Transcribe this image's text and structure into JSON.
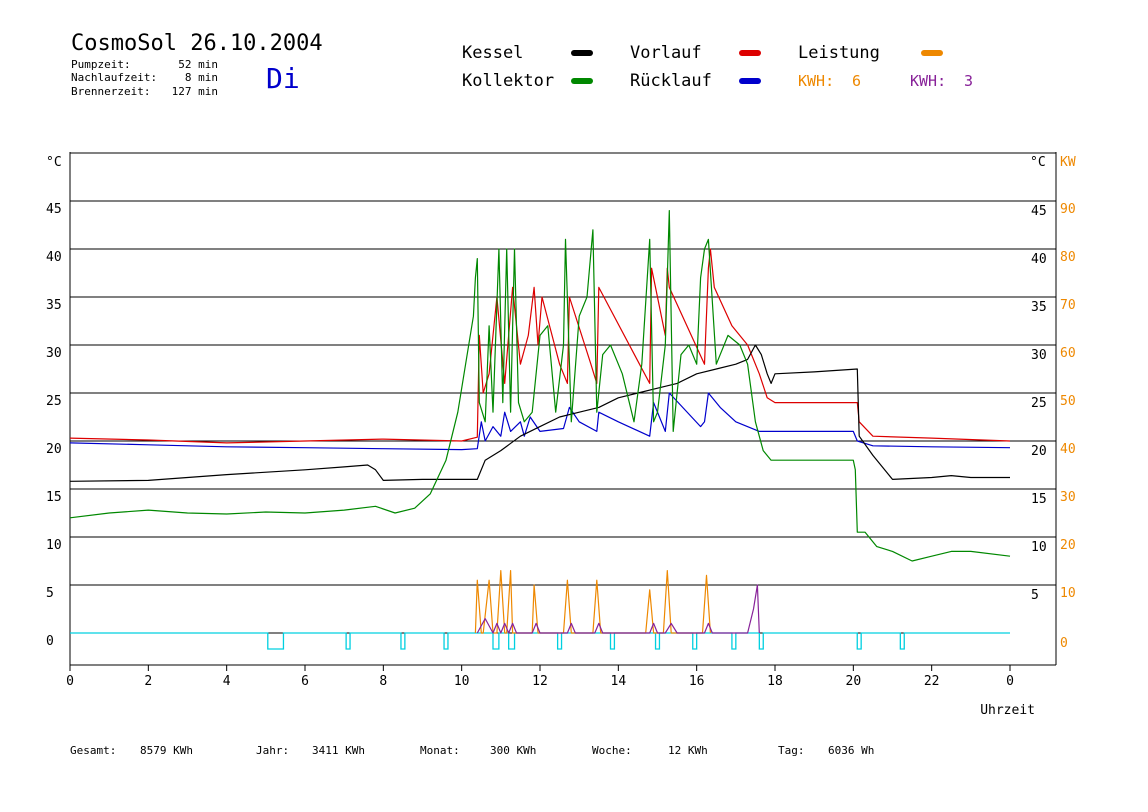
{
  "header": {
    "title": "CosmoSol 26.10.2004",
    "weekday": "Di",
    "stats": [
      {
        "label": "Pumpzeit:",
        "value": "52 min"
      },
      {
        "label": "Nachlaufzeit:",
        "value": "8 min"
      },
      {
        "label": "Brennerzeit:",
        "value": "127 min"
      }
    ]
  },
  "legend": [
    {
      "label": "Kessel",
      "color": "#000000"
    },
    {
      "label": "Vorlauf",
      "color": "#dd0000"
    },
    {
      "label": "Leistung",
      "color": "#ee8800"
    },
    {
      "label": "Kollektor",
      "color": "#008800"
    },
    {
      "label": "Rücklauf",
      "color": "#0000cc"
    }
  ],
  "kwh": [
    {
      "label": "KWH:",
      "value": "6",
      "color": "#ee8800"
    },
    {
      "label": "KWH:",
      "value": "3",
      "color": "#882299"
    }
  ],
  "footer": [
    {
      "label": "Gesamt:",
      "value": "8579 KWh"
    },
    {
      "label": "Jahr:",
      "value": "3411 KWh"
    },
    {
      "label": "Monat:",
      "value": "300 KWh"
    },
    {
      "label": "Woche:",
      "value": "12 KWh"
    },
    {
      "label": "Tag:",
      "value": "6036 Wh"
    }
  ],
  "chart_data": {
    "type": "line",
    "xlabel": "Uhrzeit",
    "ylabel": "°C",
    "ylabel_right": "°C",
    "ylabel_right2": "KW",
    "xlim": [
      0,
      24
    ],
    "ylim": [
      0,
      50
    ],
    "x_ticks": [
      "0",
      "2",
      "4",
      "6",
      "8",
      "10",
      "12",
      "14",
      "16",
      "18",
      "20",
      "22",
      "0"
    ],
    "y_ticks": [
      0,
      5,
      10,
      15,
      20,
      25,
      30,
      35,
      40,
      45
    ],
    "y2_ticks": [
      0,
      10,
      20,
      30,
      40,
      50,
      60,
      70,
      80,
      90
    ],
    "grid": true,
    "series": [
      {
        "name": "Vorlauf",
        "color": "#dd0000",
        "x": [
          0,
          2,
          4,
          6,
          8,
          10,
          10.4,
          10.45,
          10.55,
          10.7,
          10.9,
          11.1,
          11.3,
          11.5,
          11.7,
          11.85,
          11.95,
          12.05,
          12.5,
          12.7,
          12.75,
          13.3,
          13.45,
          13.5,
          14.8,
          14.85,
          15.2,
          15.25,
          15.3,
          16.2,
          16.3,
          16.35,
          16.45,
          16.9,
          17.3,
          17.6,
          17.8,
          18,
          19,
          20.1,
          20.15,
          20.5,
          22,
          24
        ],
        "y": [
          20.3,
          20.1,
          19.8,
          20,
          20.2,
          20,
          20.4,
          31,
          25,
          27,
          35,
          26,
          36,
          28,
          31,
          36,
          30,
          35,
          28,
          26,
          35,
          28,
          26,
          36,
          26,
          38,
          31,
          38,
          36,
          28,
          38,
          40,
          36,
          32,
          30,
          27,
          24.5,
          24,
          24,
          24,
          22,
          20.5,
          20.3,
          20
        ],
        "source": "estimated from gridlines"
      },
      {
        "name": "Rücklauf",
        "color": "#0000cc",
        "x": [
          0,
          2,
          4,
          6,
          8,
          10,
          10.4,
          10.5,
          10.6,
          10.8,
          11,
          11.1,
          11.25,
          11.5,
          11.6,
          11.75,
          12,
          12.6,
          12.75,
          13,
          13.45,
          13.5,
          14,
          14.8,
          14.9,
          15.2,
          15.3,
          16.1,
          16.2,
          16.3,
          16.6,
          17,
          17.6,
          18,
          20,
          20.1,
          20.5,
          22,
          24
        ],
        "y": [
          19.8,
          19.6,
          19.4,
          19.3,
          19.2,
          19.1,
          19.2,
          22,
          20,
          21.5,
          20.5,
          23,
          21,
          22,
          20.5,
          22.5,
          21,
          21.3,
          23.5,
          22,
          21,
          23,
          22,
          20.5,
          24,
          21,
          25,
          21.5,
          22,
          25,
          23.5,
          22,
          21,
          21,
          21,
          20,
          19.5,
          19.4,
          19.3
        ],
        "source": "estimated from gridlines"
      },
      {
        "name": "Kessel",
        "color": "#000000",
        "x": [
          0,
          2,
          4,
          6,
          7,
          7.6,
          7.8,
          8,
          9,
          10,
          10.4,
          10.6,
          11,
          11.5,
          12,
          12.5,
          13,
          13.5,
          14,
          14.5,
          15,
          15.5,
          16,
          16.5,
          17,
          17.3,
          17.5,
          17.65,
          17.8,
          17.9,
          18,
          19,
          20.1,
          20.15,
          20.5,
          21,
          22,
          22.5,
          23,
          24
        ],
        "y": [
          15.8,
          15.9,
          16.5,
          17,
          17.3,
          17.5,
          17,
          15.9,
          16,
          16,
          16,
          18,
          19,
          20.5,
          21.5,
          22.5,
          23,
          23.5,
          24.5,
          25,
          25.5,
          26,
          27,
          27.5,
          28,
          28.5,
          30,
          29,
          27,
          26,
          27,
          27.2,
          27.5,
          20.5,
          18.5,
          16,
          16.2,
          16.4,
          16.2,
          16.2
        ],
        "source": "estimated from gridlines"
      },
      {
        "name": "Kollektor",
        "color": "#008800",
        "x": [
          0,
          1,
          2,
          3,
          4,
          5,
          6,
          7,
          7.8,
          8.3,
          8.8,
          9.2,
          9.6,
          9.9,
          10.1,
          10.3,
          10.35,
          10.4,
          10.45,
          10.6,
          10.7,
          10.8,
          10.95,
          11.05,
          11.15,
          11.25,
          11.35,
          11.45,
          11.6,
          11.8,
          12,
          12.2,
          12.4,
          12.6,
          12.65,
          12.8,
          13,
          13.2,
          13.35,
          13.45,
          13.6,
          13.8,
          14.1,
          14.4,
          14.6,
          14.8,
          14.9,
          15,
          15.2,
          15.3,
          15.4,
          15.6,
          15.8,
          16,
          16.1,
          16.2,
          16.3,
          16.5,
          16.8,
          17.1,
          17.3,
          17.5,
          17.7,
          17.9,
          18,
          19,
          20,
          20.05,
          20.1,
          20.3,
          20.6,
          21,
          21.5,
          22,
          22.5,
          23,
          24
        ],
        "y": [
          12,
          12.5,
          12.8,
          12.5,
          12.4,
          12.6,
          12.5,
          12.8,
          13.2,
          12.5,
          13,
          14.5,
          18,
          23,
          28,
          33,
          37,
          39,
          24,
          22,
          32,
          23,
          40,
          24,
          40,
          23,
          40,
          24,
          22,
          23,
          31,
          32,
          23,
          30,
          41,
          22,
          33,
          35,
          42,
          23,
          29,
          30,
          27,
          22,
          28,
          41,
          22,
          23,
          30,
          44,
          21,
          29,
          30,
          28,
          37,
          40,
          41,
          28,
          31,
          30,
          28,
          22,
          19,
          18,
          18,
          18,
          18,
          17,
          10.5,
          10.5,
          9,
          8.5,
          7.5,
          8,
          8.5,
          8.5,
          8
        ],
        "source": "estimated from gridlines"
      },
      {
        "name": "Leistung",
        "color": "#ee8800",
        "axis": "right",
        "x": [
          10.35,
          10.4,
          10.5,
          10.55,
          10.7,
          10.8,
          10.9,
          11,
          11.1,
          11.15,
          11.25,
          11.3,
          11.35,
          11.45,
          11.8,
          11.85,
          11.95,
          12.6,
          12.7,
          12.8,
          13.35,
          13.45,
          13.55,
          14.7,
          14.8,
          14.9,
          15.15,
          15.25,
          15.35,
          16.15,
          16.25,
          16.35
        ],
        "y": [
          0,
          11,
          0,
          0,
          11,
          0,
          0,
          13,
          0,
          0,
          13,
          0,
          0,
          0,
          0,
          10,
          0,
          0,
          11,
          0,
          0,
          11,
          0,
          0,
          9,
          0,
          0,
          13,
          0,
          0,
          12,
          0
        ],
        "source": "estimated from gridlines"
      },
      {
        "name": "Leistung KWH 3",
        "color": "#882299",
        "axis": "right",
        "x": [
          10.4,
          10.6,
          10.8,
          10.9,
          11,
          11.1,
          11.2,
          11.3,
          11.4,
          11.5,
          11.8,
          11.9,
          12,
          12.7,
          12.8,
          12.9,
          13.4,
          13.5,
          13.6,
          14.8,
          14.9,
          15,
          15.2,
          15.35,
          15.5,
          16.2,
          16.3,
          16.4,
          17.3,
          17.45,
          17.55,
          17.6
        ],
        "y": [
          0,
          3,
          0,
          2,
          0,
          2,
          0,
          2,
          0,
          0,
          0,
          2,
          0,
          0,
          2,
          0,
          0,
          2,
          0,
          0,
          2,
          0,
          0,
          2,
          0,
          0,
          2,
          0,
          0,
          5,
          10,
          0
        ],
        "source": "estimated from gridlines"
      }
    ]
  }
}
